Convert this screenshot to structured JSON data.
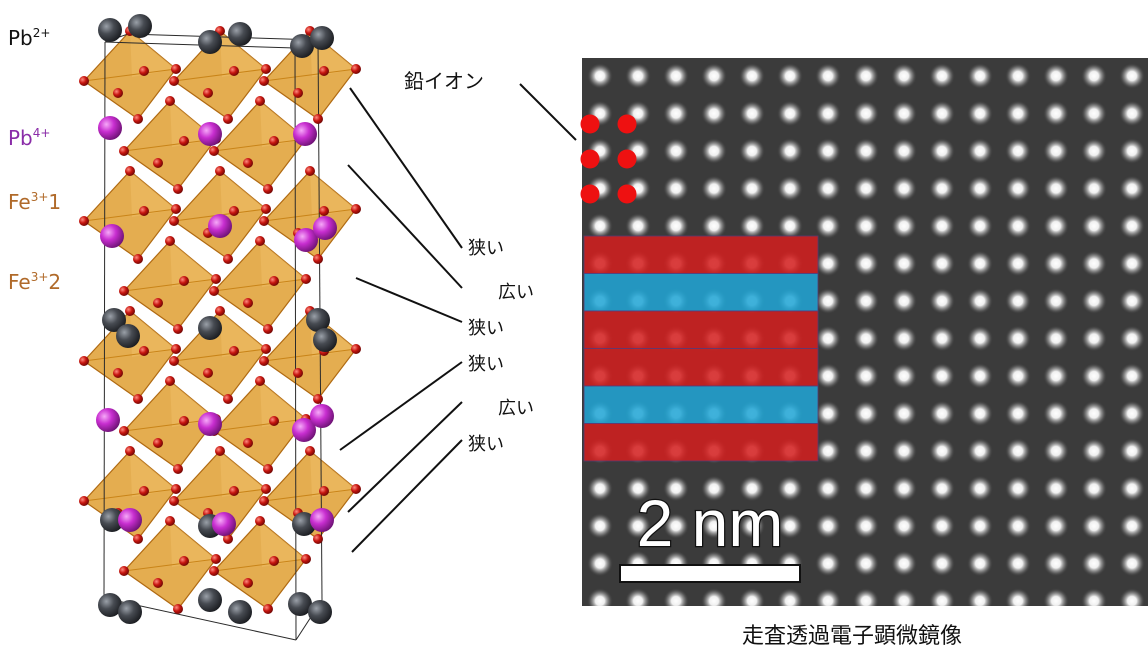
{
  "ion_labels": {
    "pb2": {
      "base": "Pb",
      "sup": "2+"
    },
    "pb4": {
      "base": "Pb",
      "sup": "4+"
    },
    "fe1": {
      "base": "Fe",
      "sup": "3+",
      "suffix": "1"
    },
    "fe2": {
      "base": "Fe",
      "sup": "3+",
      "suffix": "2"
    }
  },
  "gap_labels": [
    "狭い",
    "広い",
    "狭い",
    "狭い",
    "広い",
    "狭い"
  ],
  "lead_ion_label": "鉛イオン",
  "scale_bar_label": "2 nm",
  "caption": "走査透過電子顕微鏡像",
  "colors": {
    "pb2_atom": "#3a3d44",
    "pb4_atom": "#c02cc8",
    "oxygen_atom": "#c3140e",
    "octahedron": "#dd961f",
    "band_red": "#d41f1f",
    "band_blue": "#21a6d6",
    "pb4_text": "#8a2ca8",
    "fe_text": "#b06a2a"
  },
  "band_sequence": [
    "red",
    "blue",
    "red",
    "red",
    "blue",
    "red"
  ]
}
